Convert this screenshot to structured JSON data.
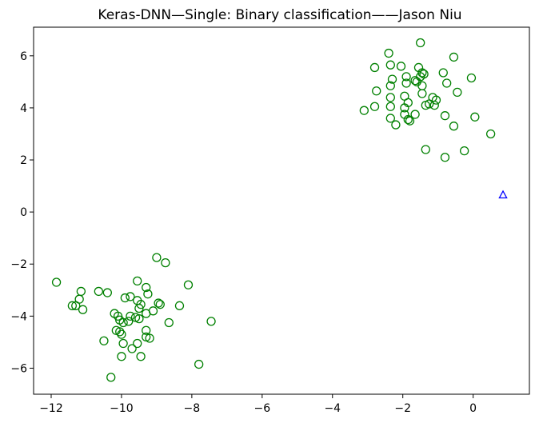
{
  "chart_data": {
    "type": "scatter",
    "title": "Keras-DNN—Single: Binary classification——Jason Niu",
    "xlabel": "",
    "ylabel": "",
    "xlim": [
      -12.5,
      1.6
    ],
    "ylim": [
      -7.0,
      7.1
    ],
    "x_ticks": [
      -12,
      -10,
      -8,
      -6,
      -4,
      -2,
      0
    ],
    "y_ticks": [
      -6,
      -4,
      -2,
      0,
      2,
      4,
      6
    ],
    "x_tick_labels": [
      "−12",
      "−10",
      "−8",
      "−6",
      "−4",
      "−2",
      "0"
    ],
    "y_tick_labels": [
      "−6",
      "−4",
      "−2",
      "0",
      "2",
      "4",
      "6"
    ],
    "grid": false,
    "colors": {
      "circles": "#008000",
      "triangle": "#0000ff",
      "frame": "#000000"
    },
    "series": [
      {
        "marker": "circle-open",
        "points": [
          [
            -1.5,
            6.5
          ],
          [
            -2.4,
            6.1
          ],
          [
            -0.55,
            5.95
          ],
          [
            -2.8,
            5.55
          ],
          [
            -2.35,
            5.65
          ],
          [
            -2.05,
            5.6
          ],
          [
            -1.55,
            5.55
          ],
          [
            -1.45,
            5.35
          ],
          [
            -1.4,
            5.3
          ],
          [
            -0.85,
            5.35
          ],
          [
            -2.3,
            5.1
          ],
          [
            -1.9,
            5.2
          ],
          [
            -1.5,
            5.2
          ],
          [
            -1.6,
            5.0
          ],
          [
            -1.9,
            4.95
          ],
          [
            -1.65,
            5.05
          ],
          [
            -0.05,
            5.15
          ],
          [
            -0.75,
            4.95
          ],
          [
            -2.35,
            4.85
          ],
          [
            -1.45,
            4.85
          ],
          [
            -2.75,
            4.65
          ],
          [
            -0.45,
            4.6
          ],
          [
            -1.45,
            4.55
          ],
          [
            -2.35,
            4.4
          ],
          [
            -1.95,
            4.45
          ],
          [
            -1.15,
            4.4
          ],
          [
            -1.05,
            4.3
          ],
          [
            -1.25,
            4.15
          ],
          [
            -1.1,
            4.1
          ],
          [
            -1.35,
            4.1
          ],
          [
            -1.85,
            4.2
          ],
          [
            -2.8,
            4.05
          ],
          [
            -2.35,
            4.05
          ],
          [
            -1.95,
            4.0
          ],
          [
            -3.1,
            3.9
          ],
          [
            -1.95,
            3.75
          ],
          [
            -1.65,
            3.75
          ],
          [
            -0.8,
            3.7
          ],
          [
            0.05,
            3.65
          ],
          [
            -2.35,
            3.6
          ],
          [
            -1.85,
            3.55
          ],
          [
            -1.8,
            3.5
          ],
          [
            -2.2,
            3.35
          ],
          [
            -0.55,
            3.3
          ],
          [
            0.5,
            3.0
          ],
          [
            -1.35,
            2.4
          ],
          [
            -0.25,
            2.35
          ],
          [
            -0.8,
            2.1
          ],
          [
            -11.85,
            -2.7
          ],
          [
            -9.0,
            -1.75
          ],
          [
            -8.75,
            -1.95
          ],
          [
            -8.1,
            -2.8
          ],
          [
            -9.55,
            -2.65
          ],
          [
            -9.3,
            -2.9
          ],
          [
            -10.65,
            -3.05
          ],
          [
            -10.4,
            -3.1
          ],
          [
            -11.15,
            -3.05
          ],
          [
            -11.2,
            -3.35
          ],
          [
            -9.25,
            -3.15
          ],
          [
            -9.9,
            -3.3
          ],
          [
            -9.75,
            -3.25
          ],
          [
            -9.55,
            -3.4
          ],
          [
            -11.3,
            -3.6
          ],
          [
            -11.4,
            -3.6
          ],
          [
            -11.1,
            -3.75
          ],
          [
            -9.45,
            -3.55
          ],
          [
            -8.95,
            -3.5
          ],
          [
            -8.9,
            -3.55
          ],
          [
            -8.35,
            -3.6
          ],
          [
            -9.5,
            -3.7
          ],
          [
            -9.1,
            -3.8
          ],
          [
            -9.3,
            -3.9
          ],
          [
            -10.2,
            -3.9
          ],
          [
            -10.1,
            -4.0
          ],
          [
            -9.75,
            -4.0
          ],
          [
            -9.6,
            -4.05
          ],
          [
            -9.5,
            -4.1
          ],
          [
            -10.05,
            -4.15
          ],
          [
            -9.8,
            -4.2
          ],
          [
            -9.95,
            -4.25
          ],
          [
            -8.65,
            -4.25
          ],
          [
            -7.45,
            -4.2
          ],
          [
            -9.3,
            -4.55
          ],
          [
            -10.15,
            -4.55
          ],
          [
            -10.05,
            -4.6
          ],
          [
            -10.0,
            -4.7
          ],
          [
            -9.3,
            -4.8
          ],
          [
            -9.2,
            -4.85
          ],
          [
            -10.5,
            -4.95
          ],
          [
            -9.55,
            -5.05
          ],
          [
            -9.95,
            -5.05
          ],
          [
            -9.7,
            -5.25
          ],
          [
            -10.0,
            -5.55
          ],
          [
            -9.45,
            -5.55
          ],
          [
            -7.8,
            -5.85
          ],
          [
            -10.3,
            -6.35
          ]
        ]
      },
      {
        "marker": "triangle-open",
        "points": [
          [
            0.85,
            0.65
          ]
        ]
      }
    ]
  }
}
